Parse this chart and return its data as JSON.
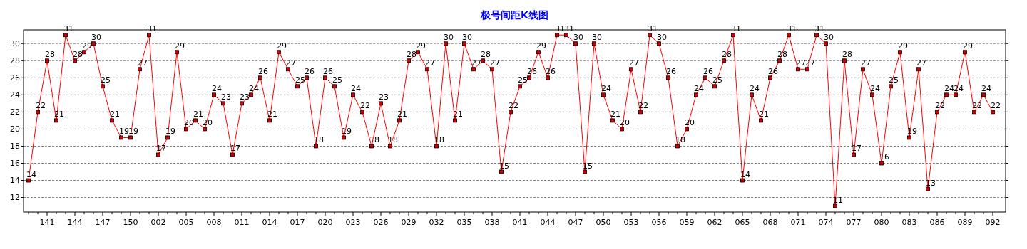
{
  "chart_data": {
    "type": "line",
    "title": "极号间距K线图",
    "categories": [
      null,
      null,
      "141",
      null,
      null,
      "144",
      null,
      null,
      "147",
      null,
      null,
      "150",
      null,
      null,
      "002",
      null,
      null,
      "005",
      null,
      null,
      "008",
      null,
      null,
      "011",
      null,
      null,
      "014",
      null,
      null,
      "017",
      null,
      null,
      "020",
      null,
      null,
      "023",
      null,
      null,
      "026",
      null,
      null,
      "029",
      null,
      null,
      "032",
      null,
      null,
      "035",
      null,
      null,
      "038",
      null,
      null,
      "041",
      null,
      null,
      "044",
      null,
      null,
      "047",
      null,
      null,
      "050",
      null,
      null,
      "053",
      null,
      null,
      "056",
      null,
      null,
      "059",
      null,
      null,
      "062",
      null,
      null,
      "065",
      null,
      null,
      "068",
      null,
      null,
      "071",
      null,
      null,
      "074",
      null,
      null,
      "077",
      null,
      null,
      "080",
      null,
      null,
      "083",
      null,
      null,
      "086",
      null,
      null,
      "089",
      null,
      null,
      "092"
    ],
    "series": [
      {
        "color": "#ff0000",
        "values": [
          14,
          22,
          28,
          21,
          31,
          28,
          29,
          30,
          25,
          21,
          19,
          19,
          27,
          31,
          17,
          19,
          29,
          20,
          21,
          20,
          24,
          23,
          17,
          23,
          24,
          26,
          21,
          29,
          27,
          25,
          26,
          18,
          26,
          25,
          19,
          24,
          22,
          18,
          23,
          18,
          21,
          28,
          29,
          27,
          18,
          30,
          21,
          30,
          27,
          28,
          27,
          15,
          22,
          25,
          26,
          29,
          26,
          31,
          31,
          30,
          15,
          30,
          24,
          21,
          20,
          27,
          22,
          31,
          30,
          26,
          18,
          20,
          24,
          26,
          25,
          28,
          31,
          14,
          24,
          21,
          26,
          28,
          31,
          27,
          27,
          31,
          30,
          11,
          28,
          17,
          27,
          24,
          16,
          25,
          29,
          19,
          27,
          13,
          22,
          24,
          24,
          29,
          22,
          24,
          22
        ]
      }
    ],
    "ylim": [
      10.3,
      31.6
    ],
    "yticks": [
      12,
      14,
      16,
      18,
      20,
      22,
      24,
      26,
      28,
      30
    ],
    "grid": "y",
    "marker": "square",
    "line_style": "solid",
    "data_labels": true
  }
}
